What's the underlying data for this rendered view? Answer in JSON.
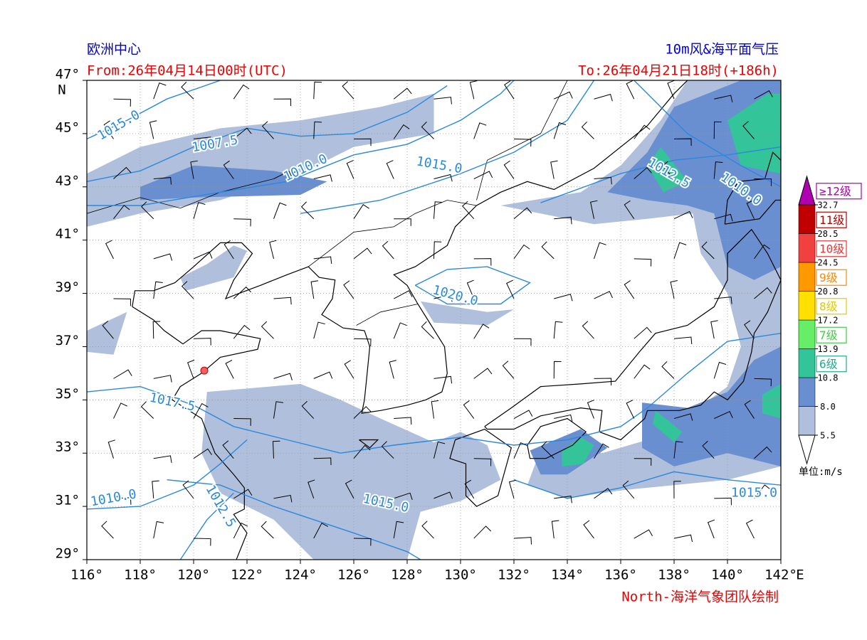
{
  "header": {
    "left_title": "欧洲中心",
    "right_title": "10m风&海平面气压",
    "from": "From:26年04月14日00时(UTC)",
    "to": "To:26年04月21日18时(+186h)"
  },
  "map": {
    "lon_ticks": [
      {
        "value": 116,
        "label": "116°"
      },
      {
        "value": 118,
        "label": "118°"
      },
      {
        "value": 120,
        "label": "120°"
      },
      {
        "value": 122,
        "label": "122°"
      },
      {
        "value": 124,
        "label": "124°"
      },
      {
        "value": 126,
        "label": "126°"
      },
      {
        "value": 128,
        "label": "128°"
      },
      {
        "value": 130,
        "label": "130°"
      },
      {
        "value": 132,
        "label": "132°"
      },
      {
        "value": 134,
        "label": "134°"
      },
      {
        "value": 136,
        "label": "136°"
      },
      {
        "value": 138,
        "label": "138°"
      },
      {
        "value": 140,
        "label": "140°"
      },
      {
        "value": 142,
        "label": "142°"
      }
    ],
    "lat_ticks": [
      {
        "value": 47,
        "label": "47°"
      },
      {
        "value": 45,
        "label": "45°"
      },
      {
        "value": 43,
        "label": "43°"
      },
      {
        "value": 41,
        "label": "41°"
      },
      {
        "value": 39,
        "label": "39°"
      },
      {
        "value": 37,
        "label": "37°"
      },
      {
        "value": 35,
        "label": "35°"
      },
      {
        "value": 33,
        "label": "33°"
      },
      {
        "value": 31,
        "label": "31°"
      },
      {
        "value": 29,
        "label": "29°"
      }
    ],
    "lon_axis_label": "E",
    "lat_axis_label": "N",
    "contour_labels": [
      "1015.0",
      "1007.5",
      "1010.0",
      "1015.0",
      "1012.5",
      "1010.0",
      "1020.0",
      "1017.5",
      "1015.0",
      "1010.0",
      "1012.5",
      "1015.0"
    ]
  },
  "colorbar": {
    "levels": [
      5.5,
      {
        "value": 8,
        "label": "8.0"
      },
      10.8,
      13.9,
      17.2,
      20.8,
      24.5,
      28.5,
      32.7
    ],
    "colors": [
      "#b0c0dc",
      "#6a8fd0",
      "#33c499",
      "#66ee66",
      "#ffe000",
      "#ff9900",
      "#f04040",
      "#c00000"
    ],
    "extend_color": "#b000b0",
    "grade_labels": [
      "6级",
      "7级",
      "8级",
      "9级",
      "10级",
      "11级",
      "≥12级"
    ],
    "grade_colors": [
      "#22aa88",
      "#44cc44",
      "#e6c800",
      "#ff8800",
      "#ee3333",
      "#bb0000",
      "#b000b0"
    ],
    "unit": "单位:m/s"
  },
  "footer": "North-海洋气象团队绘制"
}
